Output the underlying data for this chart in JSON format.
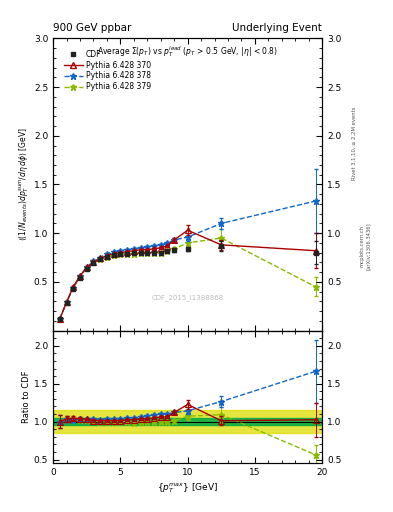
{
  "title_left": "900 GeV ppbar",
  "title_right": "Underlying Event",
  "plot_title": "Average $\\Sigma(p_T)$ vs $p_T^{lead}$ ($p_T$ > 0.5 GeV, $|\\eta|$ < 0.8)",
  "watermark": "CDF_2015_I1388868",
  "rivet_label": "Rivet 3.1.10, ≥ 2.2M events",
  "arxiv_label": "[arXiv:1306.3436]",
  "mcplots_label": "mcplots.cern.ch",
  "xlabel": "$\\{p_T^{max}\\}$ [GeV]",
  "ylabel_main": "$\\langle (1/N_{events}) dp_T^{sum}/d\\eta\\, d\\phi\\rangle$ [GeV]",
  "ylabel_ratio": "Ratio to CDF",
  "ylim_main": [
    0.0,
    3.0
  ],
  "ylim_ratio": [
    0.45,
    2.2
  ],
  "xlim": [
    0,
    20
  ],
  "cdf_x": [
    0.5,
    1.0,
    1.5,
    2.0,
    2.5,
    3.0,
    3.5,
    4.0,
    4.5,
    5.0,
    5.5,
    6.0,
    6.5,
    7.0,
    7.5,
    8.0,
    8.5,
    9.0,
    10.0,
    12.5,
    19.5
  ],
  "cdf_y": [
    0.12,
    0.28,
    0.43,
    0.54,
    0.63,
    0.69,
    0.73,
    0.76,
    0.78,
    0.79,
    0.79,
    0.8,
    0.8,
    0.8,
    0.8,
    0.8,
    0.82,
    0.83,
    0.84,
    0.87,
    0.8
  ],
  "cdf_yerr": [
    0.01,
    0.01,
    0.01,
    0.01,
    0.01,
    0.01,
    0.01,
    0.01,
    0.01,
    0.01,
    0.01,
    0.01,
    0.01,
    0.01,
    0.01,
    0.01,
    0.01,
    0.02,
    0.02,
    0.05,
    0.12
  ],
  "p370_x": [
    0.5,
    1.0,
    1.5,
    2.0,
    2.5,
    3.0,
    3.5,
    4.0,
    4.5,
    5.0,
    5.5,
    6.0,
    6.5,
    7.0,
    7.5,
    8.0,
    8.5,
    9.0,
    10.0,
    12.5,
    19.5
  ],
  "p370_y": [
    0.12,
    0.29,
    0.45,
    0.56,
    0.65,
    0.7,
    0.74,
    0.77,
    0.79,
    0.8,
    0.81,
    0.82,
    0.83,
    0.83,
    0.84,
    0.85,
    0.87,
    0.93,
    1.03,
    0.88,
    0.82
  ],
  "p370_yerr": [
    0.01,
    0.01,
    0.01,
    0.01,
    0.01,
    0.01,
    0.01,
    0.01,
    0.01,
    0.01,
    0.01,
    0.01,
    0.01,
    0.01,
    0.01,
    0.01,
    0.01,
    0.02,
    0.05,
    0.05,
    0.18
  ],
  "p378_x": [
    0.5,
    1.0,
    1.5,
    2.0,
    2.5,
    3.0,
    3.5,
    4.0,
    4.5,
    5.0,
    5.5,
    6.0,
    6.5,
    7.0,
    7.5,
    8.0,
    8.5,
    9.0,
    10.0,
    12.5,
    19.5
  ],
  "p378_y": [
    0.12,
    0.29,
    0.44,
    0.56,
    0.65,
    0.71,
    0.75,
    0.79,
    0.81,
    0.82,
    0.83,
    0.84,
    0.85,
    0.86,
    0.87,
    0.88,
    0.9,
    0.93,
    0.96,
    1.1,
    1.33
  ],
  "p378_yerr": [
    0.01,
    0.01,
    0.01,
    0.01,
    0.01,
    0.01,
    0.01,
    0.01,
    0.01,
    0.01,
    0.01,
    0.01,
    0.01,
    0.01,
    0.01,
    0.01,
    0.01,
    0.02,
    0.04,
    0.06,
    0.33
  ],
  "p379_x": [
    0.5,
    1.0,
    1.5,
    2.0,
    2.5,
    3.0,
    3.5,
    4.0,
    4.5,
    5.0,
    5.5,
    6.0,
    6.5,
    7.0,
    7.5,
    8.0,
    8.5,
    9.0,
    10.0,
    12.5,
    19.5
  ],
  "p379_y": [
    0.12,
    0.29,
    0.44,
    0.55,
    0.64,
    0.7,
    0.73,
    0.76,
    0.78,
    0.79,
    0.79,
    0.79,
    0.8,
    0.8,
    0.8,
    0.8,
    0.82,
    0.84,
    0.9,
    0.95,
    0.45
  ],
  "p379_yerr": [
    0.01,
    0.01,
    0.01,
    0.01,
    0.01,
    0.01,
    0.01,
    0.01,
    0.01,
    0.01,
    0.01,
    0.01,
    0.01,
    0.01,
    0.01,
    0.01,
    0.01,
    0.02,
    0.04,
    0.09,
    0.1
  ],
  "cdf_color": "#222222",
  "p370_color": "#aa0000",
  "p378_color": "#1166cc",
  "p379_color": "#88bb00",
  "band_green": "#00aa44",
  "band_yellow": "#dddd00",
  "ratio_band_inner": 0.05,
  "ratio_band_outer": 0.15,
  "yticks_main": [
    0.5,
    1.0,
    1.5,
    2.0,
    2.5,
    3.0
  ],
  "yticks_ratio": [
    0.5,
    1.0,
    1.5,
    2.0
  ],
  "xticks": [
    0,
    5,
    10,
    15,
    20
  ]
}
